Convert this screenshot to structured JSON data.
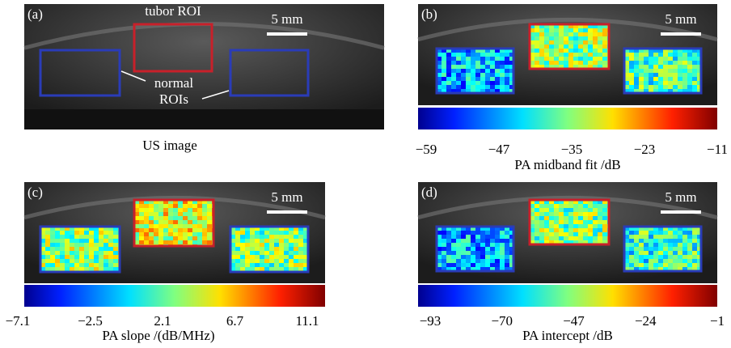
{
  "panels": [
    {
      "label": "(a)",
      "scale_bar": "5 mm",
      "tumor_label": "tubor ROI",
      "normal_label": [
        "normal",
        "ROIs"
      ],
      "caption": "US image"
    },
    {
      "label": "(b)",
      "scale_bar": "5 mm",
      "colorbar": {
        "ticks": [
          "−59",
          "−47",
          "−35",
          "−23",
          "−11"
        ],
        "title": "PA midband fit /dB"
      }
    },
    {
      "label": "(c)",
      "scale_bar": "5 mm",
      "colorbar": {
        "ticks": [
          "−7.1",
          "−2.5",
          "2.1",
          "6.7",
          "11.1"
        ],
        "title": "PA slope /(dB/MHz)"
      }
    },
    {
      "label": "(d)",
      "scale_bar": "5 mm",
      "colorbar": {
        "ticks": [
          "−93",
          "−70",
          "−47",
          "−24",
          "−1"
        ],
        "title": "PA intercept /dB"
      }
    }
  ]
}
